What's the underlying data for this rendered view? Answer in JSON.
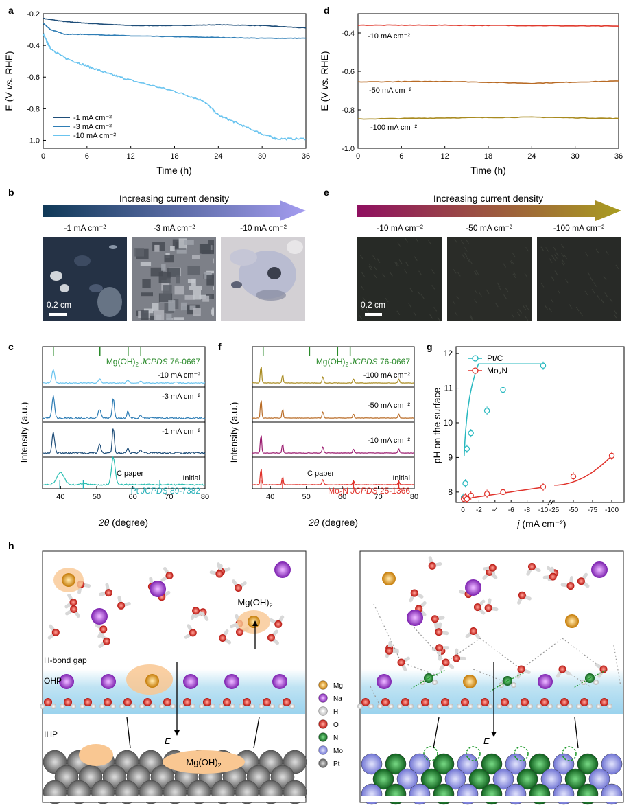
{
  "panel_labels": [
    "a",
    "b",
    "c",
    "d",
    "e",
    "f",
    "g",
    "h"
  ],
  "panel_a": {
    "ylabel_parts": [
      "E (V ",
      "vs.",
      " RHE)"
    ],
    "xlabel": "Time (h)",
    "xticks": [
      "0",
      "6",
      "12",
      "18",
      "24",
      "30",
      "36"
    ],
    "yticks": [
      "-0.2",
      "-0.4",
      "-0.6",
      "-0.8",
      "-1.0"
    ],
    "legend": [
      "-1 mA cm⁻²",
      "-3 mA cm⁻²",
      "-10 mA cm⁻²"
    ],
    "colors": [
      "#1f4e79",
      "#2e7db5",
      "#6ac4ef"
    ]
  },
  "panel_d": {
    "ylabel_parts": [
      "E (V ",
      "vs.",
      " RHE)"
    ],
    "xlabel": "Time (h)",
    "xticks": [
      "0",
      "6",
      "12",
      "18",
      "24",
      "30",
      "36"
    ],
    "yticks": [
      "-0.4",
      "-0.6",
      "-0.8",
      "-1.0"
    ],
    "labels": [
      "-10 mA cm⁻²",
      "-50 mA cm⁻²",
      "-100 mA cm⁻²"
    ],
    "colors": [
      "#e03a2e",
      "#b86a24",
      "#a88a1f"
    ]
  },
  "panel_b": {
    "arrow_text": "Increasing current density",
    "photo_labels": [
      "-1 mA cm⁻²",
      "-3 mA cm⁻²",
      "-10 mA cm⁻²"
    ],
    "scale": "0.2 cm"
  },
  "panel_e": {
    "arrow_text": "Increasing current density",
    "photo_labels": [
      "-10 mA cm⁻²",
      "-50 mA cm⁻²",
      "-100 mA cm⁻²"
    ],
    "scale": "0.2 cm"
  },
  "panel_c": {
    "ylabel": "Intensity (a.u.)",
    "xlabel_italic": "2θ",
    "xlabel_rest": " (degree)",
    "xticks": [
      "40",
      "50",
      "60",
      "70",
      "80"
    ],
    "ref_top": [
      "Mg(OH)",
      "2",
      " JCPDS",
      " 76-0667"
    ],
    "traces": [
      "-10 mA cm⁻²",
      "-3 mA cm⁻²",
      "-1 mA cm⁻²"
    ],
    "bottom_labels": [
      "C paper",
      "Initial"
    ],
    "ref_bottom": [
      "Pt ",
      "JCPDS",
      " 89-7382"
    ]
  },
  "panel_f": {
    "ylabel": "Intensity (a.u.)",
    "xlabel_italic": "2θ",
    "xlabel_rest": " (degree)",
    "xticks": [
      "40",
      "50",
      "60",
      "70",
      "80"
    ],
    "ref_top": [
      "Mg(OH)",
      "2",
      " JCPDS",
      " 76-0667"
    ],
    "traces": [
      "-100 mA cm⁻²",
      "-50 mA cm⁻²",
      "-10 mA cm⁻²"
    ],
    "bottom_labels": [
      "C paper",
      "Initial"
    ],
    "ref_bottom": [
      "Mo",
      "2",
      "N ",
      "JCPDS",
      " 25-1366"
    ]
  },
  "chart_data": [
    {
      "type": "line",
      "panel": "a",
      "xlabel": "Time (h)",
      "ylabel": "E (V vs. RHE)",
      "xlim": [
        0,
        36
      ],
      "ylim": [
        -1.05,
        -0.2
      ],
      "series": [
        {
          "name": "-1 mA cm⁻²",
          "x": [
            0,
            3,
            6,
            12,
            18,
            24,
            30,
            36
          ],
          "y": [
            -0.23,
            -0.25,
            -0.26,
            -0.275,
            -0.275,
            -0.27,
            -0.275,
            -0.29
          ]
        },
        {
          "name": "-3 mA cm⁻²",
          "x": [
            0,
            1,
            3,
            6,
            12,
            18,
            24,
            30,
            36
          ],
          "y": [
            -0.26,
            -0.3,
            -0.33,
            -0.33,
            -0.34,
            -0.345,
            -0.35,
            -0.355,
            -0.355
          ]
        },
        {
          "name": "-10 mA cm⁻²",
          "x": [
            0,
            1,
            3,
            6,
            9,
            12,
            18,
            22,
            24,
            27,
            30,
            32,
            36
          ],
          "y": [
            -0.33,
            -0.42,
            -0.48,
            -0.53,
            -0.58,
            -0.62,
            -0.69,
            -0.75,
            -0.84,
            -0.9,
            -0.96,
            -0.99,
            -0.99
          ]
        }
      ]
    },
    {
      "type": "line",
      "panel": "d",
      "xlabel": "Time (h)",
      "ylabel": "E (V vs. RHE)",
      "xlim": [
        0,
        36
      ],
      "ylim": [
        -1.0,
        -0.3
      ],
      "series": [
        {
          "name": "-10 mA cm⁻²",
          "x": [
            0,
            12,
            24,
            36
          ],
          "y": [
            -0.36,
            -0.36,
            -0.362,
            -0.365
          ]
        },
        {
          "name": "-50 mA cm⁻²",
          "x": [
            0,
            12,
            24,
            36
          ],
          "y": [
            -0.655,
            -0.652,
            -0.662,
            -0.65
          ]
        },
        {
          "name": "-100 mA cm⁻²",
          "x": [
            0,
            12,
            24,
            36
          ],
          "y": [
            -0.848,
            -0.842,
            -0.838,
            -0.845
          ]
        }
      ]
    },
    {
      "type": "line",
      "panel": "g",
      "xlabel": "j (mA cm⁻²)",
      "ylabel": "pH on the surface",
      "yticks": [
        "8",
        "9",
        "10",
        "11",
        "12"
      ],
      "xticks": [
        "0",
        "-2",
        "-4",
        "-6",
        "-8",
        "-10",
        "-25",
        "-50",
        "-75",
        "-100"
      ],
      "ylim": [
        7.7,
        12.2
      ],
      "series": [
        {
          "name": "Pt/C",
          "x": [
            -0.1,
            -0.3,
            -0.5,
            -1,
            -3,
            -5,
            -10
          ],
          "y": [
            7.85,
            8.25,
            9.25,
            9.7,
            10.35,
            10.95,
            11.65
          ]
        },
        {
          "name": "Mo₂N",
          "x": [
            -0.1,
            -0.3,
            -0.5,
            -1,
            -3,
            -5,
            -10,
            -50,
            -100
          ],
          "y": [
            7.8,
            7.85,
            7.8,
            7.9,
            7.95,
            8.0,
            8.15,
            8.45,
            9.05
          ]
        }
      ]
    }
  ],
  "panel_h": {
    "labels": [
      "H-bond gap",
      "OHP",
      "IHP"
    ],
    "mg_label": [
      "Mg(OH)",
      "2"
    ],
    "e_label": "E",
    "legend": [
      "Mg",
      "Na",
      "H",
      "O",
      "N",
      "Mo",
      "Pt"
    ],
    "legend_colors": [
      "#f2a019",
      "#a23fd6",
      "#f2f2f2",
      "#e0261e",
      "#1a7a2a",
      "#8f92e8",
      "#7a7a7a"
    ]
  },
  "panel_g": {
    "ylabel": "pH on the surface",
    "xlabel_italic": "j",
    "xlabel_rest": " (mA cm⁻²)",
    "legend": [
      "Pt/C",
      "Mo₂N"
    ],
    "colors": [
      "#27b8bf",
      "#e0312a"
    ]
  }
}
